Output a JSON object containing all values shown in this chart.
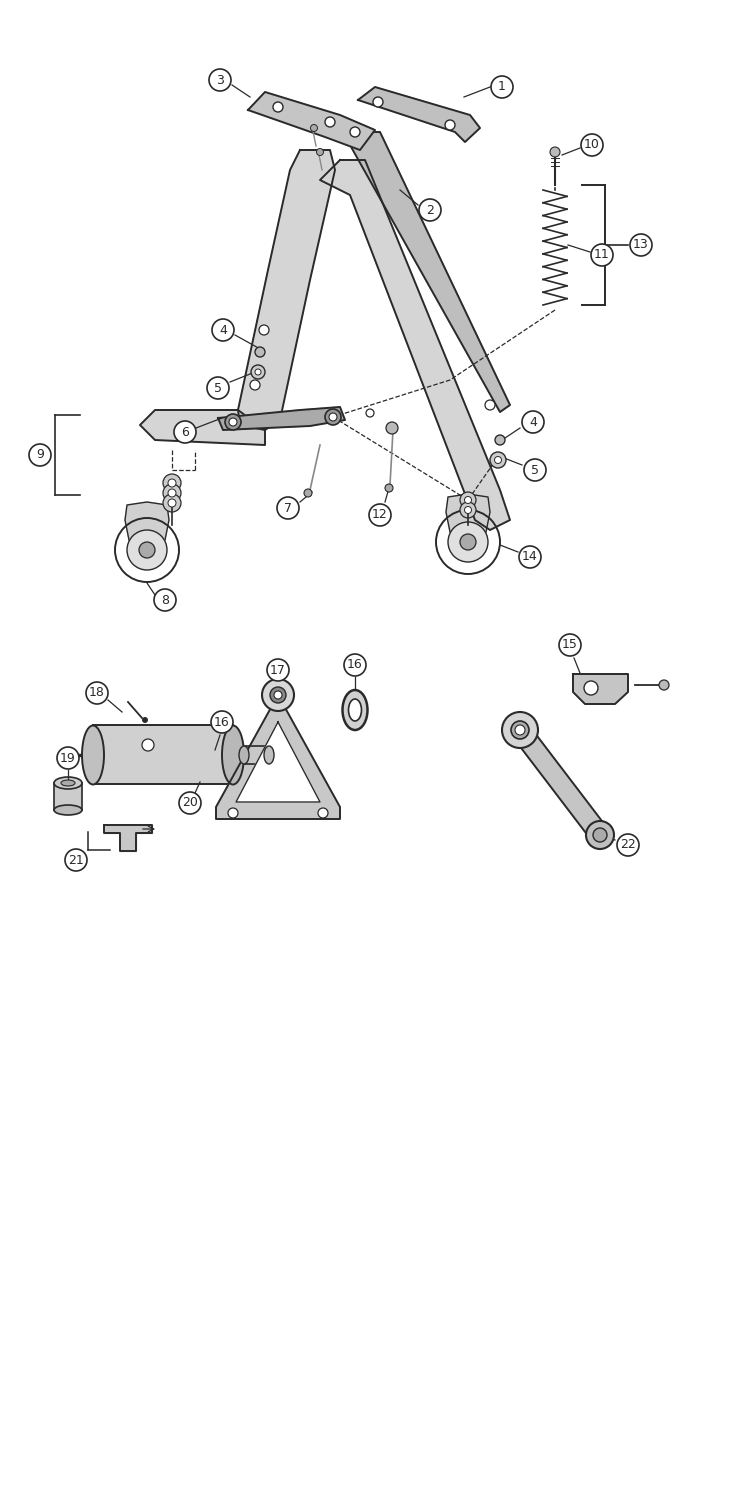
{
  "bg_color": "#ffffff",
  "line_color": "#2a2a2a",
  "figsize": [
    7.52,
    15.0
  ],
  "dpi": 100,
  "top_parts": {
    "frame_color": "#d5d5d5",
    "frame_edge": "#2a2a2a"
  }
}
